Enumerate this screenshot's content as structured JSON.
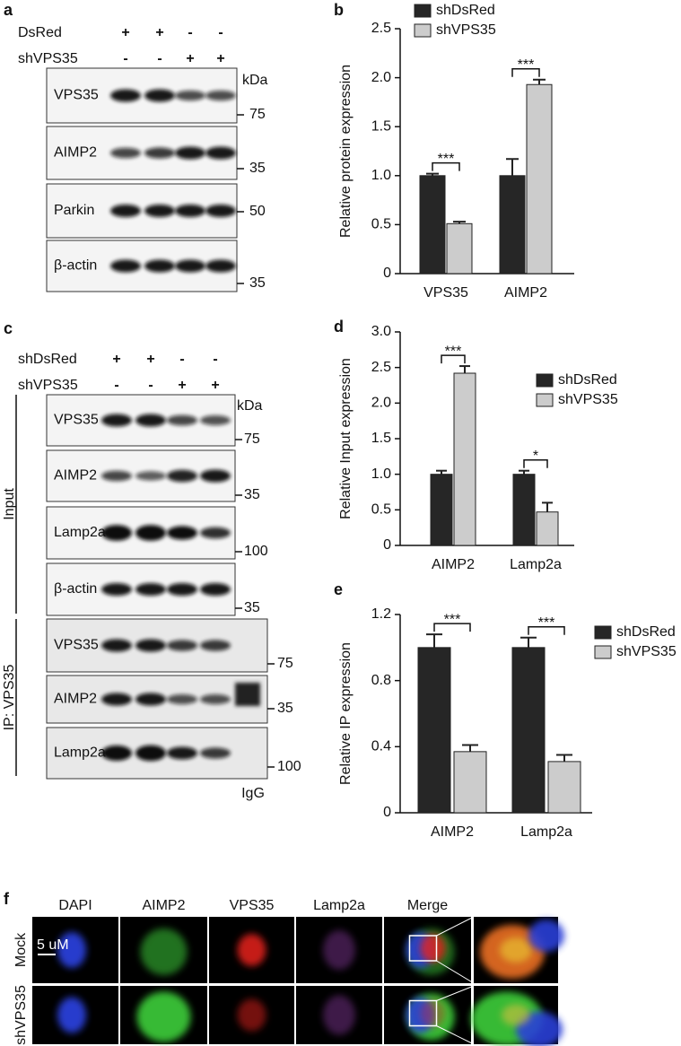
{
  "blots": [
    {
      "label": "a",
      "conditions": [
        {
          "name": "DsRed",
          "signs": [
            "+",
            "+",
            "-",
            "-"
          ]
        },
        {
          "name": "shVPS35",
          "signs": [
            "-",
            "-",
            "+",
            "+"
          ]
        }
      ],
      "unit": "kDa",
      "groups": [
        {
          "rows": [
            {
              "protein": "VPS35",
              "marker": "75"
            },
            {
              "protein": "AIMP2",
              "marker": "35"
            },
            {
              "protein": "Parkin",
              "marker": "50"
            },
            {
              "protein": "β-actin",
              "marker": "35"
            }
          ]
        }
      ]
    },
    {
      "label": "c",
      "conditions": [
        {
          "name": "shDsRed",
          "signs": [
            "+",
            "+",
            "-",
            "-"
          ]
        },
        {
          "name": "shVPS35",
          "signs": [
            "-",
            "-",
            "+",
            "+"
          ]
        }
      ],
      "unit": "kDa",
      "groups": [
        {
          "name": "Input",
          "rows": [
            {
              "protein": "VPS35",
              "marker": "75"
            },
            {
              "protein": "AIMP2",
              "marker": "35"
            },
            {
              "protein": "Lamp2a",
              "marker": "100"
            },
            {
              "protein": "β-actin",
              "marker": "35"
            }
          ]
        },
        {
          "name": "IP: VPS35",
          "rows": [
            {
              "protein": "VPS35",
              "marker": "75"
            },
            {
              "protein": "AIMP2",
              "marker": "35"
            },
            {
              "protein": "Lamp2a",
              "marker": "100"
            }
          ]
        }
      ],
      "lane_note": "IgG"
    }
  ],
  "chart_data": [
    {
      "type": "bar",
      "label": "b",
      "ylabel": "Relative protein expression",
      "categories": [
        "VPS35",
        "AIMP2"
      ],
      "series": [
        {
          "name": "shDsRed",
          "color": "#262626",
          "values": [
            1.0,
            1.0
          ],
          "errors": [
            0.02,
            0.17
          ]
        },
        {
          "name": "shVPS35",
          "color": "#cccccc",
          "values": [
            0.51,
            1.93
          ],
          "errors": [
            0.02,
            0.05
          ]
        }
      ],
      "significance": [
        "***",
        "***"
      ],
      "ylim": [
        0,
        2.5
      ],
      "yticks": [
        0,
        0.5,
        {
          "value": 1,
          "label": "1.0"
        },
        1.5,
        {
          "value": 2,
          "label": "2.0"
        },
        2.5
      ],
      "legend": "upper left"
    },
    {
      "type": "bar",
      "label": "d",
      "ylabel": "Relative Input expression",
      "categories": [
        "AIMP2",
        "Lamp2a"
      ],
      "series": [
        {
          "name": "shDsRed",
          "color": "#262626",
          "values": [
            1.0,
            1.0
          ],
          "errors": [
            0.05,
            0.05
          ]
        },
        {
          "name": "shVPS35",
          "color": "#cccccc",
          "values": [
            2.42,
            0.47
          ],
          "errors": [
            0.1,
            0.13
          ]
        }
      ],
      "significance": [
        "***",
        "*"
      ],
      "ylim": [
        0,
        3
      ],
      "yticks": [
        0,
        0.5,
        {
          "value": 1,
          "label": "1.0"
        },
        1.5,
        {
          "value": 2,
          "label": "2.0"
        },
        2.5,
        {
          "value": 3,
          "label": "3.0"
        }
      ],
      "legend": "center right"
    },
    {
      "type": "bar",
      "label": "e",
      "ylabel": "Relative IP expression",
      "categories": [
        "AIMP2",
        "Lamp2a"
      ],
      "series": [
        {
          "name": "shDsRed",
          "color": "#262626",
          "values": [
            1.0,
            1.0
          ],
          "errors": [
            0.08,
            0.06
          ]
        },
        {
          "name": "shVPS35",
          "color": "#cccccc",
          "values": [
            0.37,
            0.31
          ],
          "errors": [
            0.04,
            0.04
          ]
        }
      ],
      "significance": [
        "***",
        "***"
      ],
      "ylim": [
        0,
        1.2
      ],
      "yticks": [
        0,
        0.4,
        0.8,
        1.2
      ],
      "legend": "upper right"
    }
  ],
  "microscopy": {
    "label": "f",
    "columns": [
      "DAPI",
      "AIMP2",
      "VPS35",
      "Lamp2a",
      "Merge"
    ],
    "rows": [
      "Mock",
      "shVPS35"
    ],
    "scale_bar": "5 uM"
  }
}
